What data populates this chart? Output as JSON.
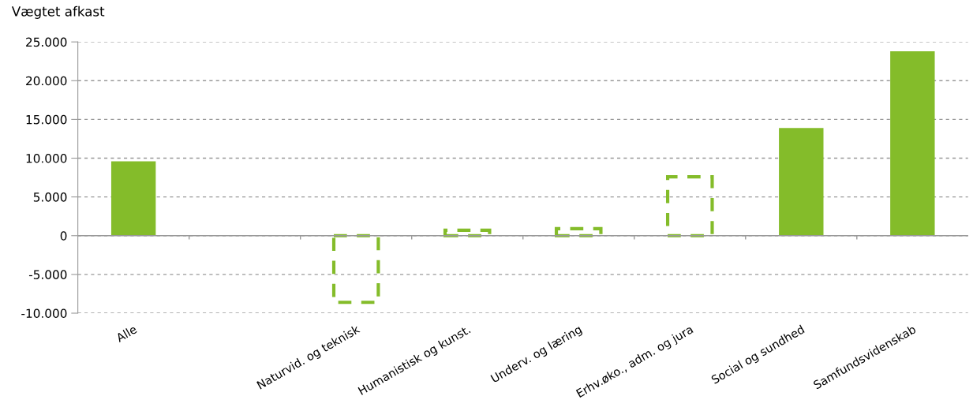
{
  "chart_data": {
    "type": "bar",
    "ylabel": "Vægtet afkast",
    "categories": [
      "Alle",
      null,
      "Naturvid. og teknisk",
      "Humanistisk og kunst.",
      "Underv. og læring",
      "Erhv.øko., adm. og jura",
      "Social og sundhed",
      "Samfundsvidenskab"
    ],
    "stacked": true,
    "series": [
      {
        "color": "#84bc2a",
        "line_style": "solid",
        "values": [
          9600,
          null,
          null,
          null,
          null,
          null,
          13900,
          23800
        ]
      },
      {
        "color": "#84bc2a",
        "line_style": "dashed",
        "values": [
          null,
          null,
          -8600,
          700,
          900,
          7600,
          null,
          null
        ]
      }
    ],
    "ylim": [
      -10000,
      25000
    ],
    "yticks": [
      {
        "value": -10000,
        "label": "-10.000"
      },
      {
        "value": -5000,
        "label": "-5.000"
      },
      0,
      {
        "value": 5000,
        "label": "5.000"
      },
      {
        "value": 10000,
        "label": "10.000"
      },
      {
        "value": 15000,
        "label": "15.000"
      },
      {
        "value": 20000,
        "label": "20.000"
      },
      {
        "value": 25000,
        "label": "25.000"
      }
    ],
    "grid": "y"
  }
}
